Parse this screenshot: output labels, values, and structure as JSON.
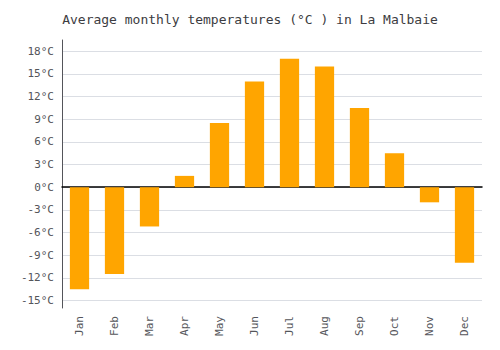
{
  "chart_data": {
    "type": "bar",
    "title": "Average monthly temperatures (°C ) in La Malbaie",
    "categories": [
      "Jan",
      "Feb",
      "Mar",
      "Apr",
      "May",
      "Jun",
      "Jul",
      "Aug",
      "Sep",
      "Oct",
      "Nov",
      "Dec"
    ],
    "values": [
      -13.5,
      -11.5,
      -5.2,
      1.5,
      8.5,
      14.0,
      17.0,
      16.0,
      10.5,
      4.5,
      -2.0,
      -10.0
    ],
    "color": "#FFA500",
    "ylim": [
      -16.0,
      19.5
    ],
    "yticks": [
      {
        "value": -15,
        "label": "-15°C"
      },
      {
        "value": -12,
        "label": "-12°C"
      },
      {
        "value": -9,
        "label": "-9°C"
      },
      {
        "value": -6,
        "label": "-6°C"
      },
      {
        "value": -3,
        "label": "-3°C"
      },
      {
        "value": 0,
        "label": "0°C"
      },
      {
        "value": 3,
        "label": "3°C"
      },
      {
        "value": 6,
        "label": "6°C"
      },
      {
        "value": 9,
        "label": "9°C"
      },
      {
        "value": 12,
        "label": "12°C"
      },
      {
        "value": 15,
        "label": "15°C"
      },
      {
        "value": 18,
        "label": "18°C"
      }
    ],
    "grid": true
  }
}
